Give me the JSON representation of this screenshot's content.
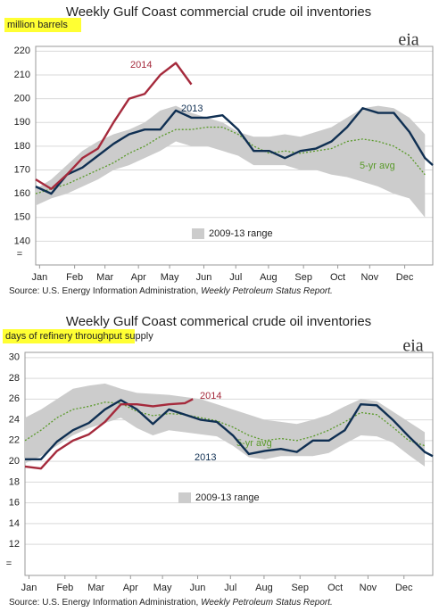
{
  "chart_data": [
    {
      "type": "line",
      "title": "Weekly Gulf Coast commercial crude oil inventories",
      "y_label": "million barrels",
      "logo": "eia",
      "source": "Source: U.S. Energy Information Administration, ",
      "source_italic": "Weekly Petroleum Status Report.",
      "axis_break": "=",
      "xlim": [
        1,
        52
      ],
      "xticks": [
        {
          "value": 1.5,
          "label": "Jan"
        },
        {
          "value": 6,
          "label": "Feb"
        },
        {
          "value": 9.9,
          "label": "Mar"
        },
        {
          "value": 14.2,
          "label": "Apr"
        },
        {
          "value": 18.2,
          "label": "May"
        },
        {
          "value": 22.6,
          "label": "Jun"
        },
        {
          "value": 26.7,
          "label": "Jul"
        },
        {
          "value": 30.9,
          "label": "Aug"
        },
        {
          "value": 35.4,
          "label": "Sep"
        },
        {
          "value": 39.8,
          "label": "Oct"
        },
        {
          "value": 43.9,
          "label": "Nov"
        },
        {
          "value": 48.4,
          "label": "Dec"
        }
      ],
      "ylim": [
        130,
        222
      ],
      "yticks": [
        140,
        150,
        160,
        170,
        180,
        190,
        200,
        210,
        220
      ],
      "grid": true,
      "x": [
        1,
        3,
        5,
        7,
        9,
        11,
        13,
        15,
        17,
        19,
        21,
        23,
        25,
        27,
        29,
        31,
        33,
        35,
        37,
        39,
        41,
        43,
        45,
        47,
        49,
        51
      ],
      "range": {
        "name": "2009-13 range",
        "color": "#cccccc",
        "high": [
          162,
          166,
          172,
          178,
          182,
          185,
          187,
          190,
          195,
          197,
          194,
          192,
          190,
          186,
          184,
          184,
          185,
          184,
          186,
          188,
          192,
          196,
          197,
          196,
          192,
          185
        ],
        "low": [
          155,
          158,
          160,
          163,
          166,
          170,
          172,
          175,
          178,
          182,
          180,
          180,
          178,
          176,
          172,
          172,
          172,
          170,
          170,
          168,
          167,
          165,
          163,
          160,
          158,
          150
        ]
      },
      "series": [
        {
          "name": "5-yr avg",
          "color": "#5a9a2a",
          "style": "dotted",
          "x": [
            1,
            3,
            5,
            7,
            9,
            11,
            13,
            15,
            17,
            19,
            21,
            23,
            25,
            27,
            29,
            31,
            33,
            35,
            37,
            39,
            41,
            43,
            45,
            47,
            49,
            51
          ],
          "values": [
            160,
            162,
            164,
            167,
            170,
            173,
            177,
            180,
            184,
            187,
            187,
            188,
            188,
            185,
            180,
            177,
            178,
            177,
            178,
            179,
            182,
            183,
            182,
            180,
            176,
            168
          ]
        },
        {
          "name": "2013",
          "color": "#0f2f52",
          "style": "solid",
          "x": [
            1,
            3,
            5,
            7,
            9,
            11,
            13,
            15,
            17,
            19,
            21,
            23,
            25,
            27,
            29,
            31,
            33,
            35,
            37,
            39,
            41,
            43,
            45,
            47,
            49,
            51,
            52
          ],
          "values": [
            163,
            160,
            168,
            171,
            176,
            181,
            185,
            187,
            187,
            195,
            192,
            192,
            193,
            187,
            178,
            178,
            175,
            178,
            179,
            182,
            188,
            196,
            194,
            194,
            186,
            175,
            172
          ]
        },
        {
          "name": "2014",
          "color": "#a52a3c",
          "style": "solid",
          "x": [
            1,
            3,
            5,
            7,
            9,
            11,
            13,
            15,
            17,
            19,
            21
          ],
          "values": [
            166,
            162,
            168,
            175,
            179,
            190,
            200,
            202,
            210,
            215,
            206
          ]
        }
      ]
    },
    {
      "type": "line",
      "title": "Weekly Gulf Coast commerical crude oil inventories",
      "y_label": "days of refinery throughput supply",
      "logo": "eia",
      "source": "Source: U.S. Energy Information Administration, ",
      "source_italic": "Weekly Petroleum Status Report.",
      "axis_break": "=",
      "xlim": [
        1,
        52
      ],
      "xticks": [
        {
          "value": 1.5,
          "label": "Jan"
        },
        {
          "value": 6,
          "label": "Feb"
        },
        {
          "value": 9.9,
          "label": "Mar"
        },
        {
          "value": 14.2,
          "label": "Apr"
        },
        {
          "value": 18.2,
          "label": "May"
        },
        {
          "value": 22.6,
          "label": "Jun"
        },
        {
          "value": 26.7,
          "label": "Jul"
        },
        {
          "value": 30.9,
          "label": "Aug"
        },
        {
          "value": 35.4,
          "label": "Sep"
        },
        {
          "value": 39.8,
          "label": "Oct"
        },
        {
          "value": 43.9,
          "label": "Nov"
        },
        {
          "value": 48.4,
          "label": "Dec"
        }
      ],
      "ylim": [
        9,
        30.5
      ],
      "yticks": [
        12,
        14,
        16,
        18,
        20,
        22,
        24,
        26,
        28,
        30
      ],
      "grid": true,
      "x": [
        1,
        3,
        5,
        7,
        9,
        11,
        13,
        15,
        17,
        19,
        21,
        23,
        25,
        27,
        29,
        31,
        33,
        35,
        37,
        39,
        41,
        43,
        45,
        47,
        49,
        51
      ],
      "range": {
        "name": "2009-13 range",
        "color": "#cccccc",
        "high": [
          24.2,
          25.0,
          26.0,
          27.0,
          27.3,
          27.5,
          27.0,
          26.6,
          26.5,
          26.4,
          26.2,
          26.0,
          25.5,
          25.0,
          24.5,
          24.0,
          23.8,
          23.6,
          24.0,
          24.5,
          25.3,
          26.0,
          25.8,
          24.8,
          23.8,
          22.8
        ],
        "low": [
          19.8,
          20.5,
          21.5,
          22.5,
          23.2,
          23.7,
          24.2,
          23.2,
          22.5,
          23.0,
          22.8,
          22.6,
          22.4,
          21.5,
          20.4,
          20.2,
          20.5,
          20.5,
          20.5,
          20.8,
          21.7,
          22.5,
          22.4,
          21.8,
          20.6,
          19.5
        ]
      },
      "series": [
        {
          "name": "5-yr avg",
          "color": "#5a9a2a",
          "style": "dotted",
          "x": [
            1,
            3,
            5,
            7,
            9,
            11,
            13,
            15,
            17,
            19,
            21,
            23,
            25,
            27,
            29,
            31,
            33,
            35,
            37,
            39,
            41,
            43,
            45,
            47,
            49,
            51
          ],
          "values": [
            22.0,
            23.0,
            24.2,
            25.0,
            25.3,
            25.7,
            25.6,
            24.8,
            24.4,
            24.6,
            24.5,
            24.2,
            23.9,
            23.3,
            22.5,
            22.0,
            22.2,
            22.0,
            22.4,
            23.0,
            23.8,
            24.7,
            24.5,
            23.3,
            22.0,
            21.5
          ]
        },
        {
          "name": "2013",
          "color": "#0f2f52",
          "style": "solid",
          "x": [
            1,
            3,
            5,
            7,
            9,
            11,
            13,
            15,
            17,
            19,
            21,
            23,
            25,
            27,
            29,
            31,
            33,
            35,
            37,
            39,
            41,
            43,
            45,
            47,
            49,
            51,
            52
          ],
          "values": [
            20.2,
            20.2,
            21.9,
            23.0,
            23.7,
            25.0,
            25.9,
            25.0,
            23.6,
            25.0,
            24.5,
            24.0,
            23.8,
            22.5,
            20.7,
            21.0,
            21.2,
            20.9,
            22.0,
            22.0,
            23.0,
            25.5,
            25.4,
            24.0,
            22.4,
            20.9,
            20.5
          ]
        },
        {
          "name": "2014",
          "color": "#a52a3c",
          "style": "solid",
          "x": [
            1,
            3,
            5,
            7,
            9,
            11,
            13,
            15,
            17,
            19,
            21,
            22
          ],
          "values": [
            19.5,
            19.3,
            21.0,
            22.0,
            22.6,
            23.8,
            25.5,
            25.5,
            25.3,
            25.5,
            25.6,
            26.0
          ]
        }
      ]
    }
  ]
}
